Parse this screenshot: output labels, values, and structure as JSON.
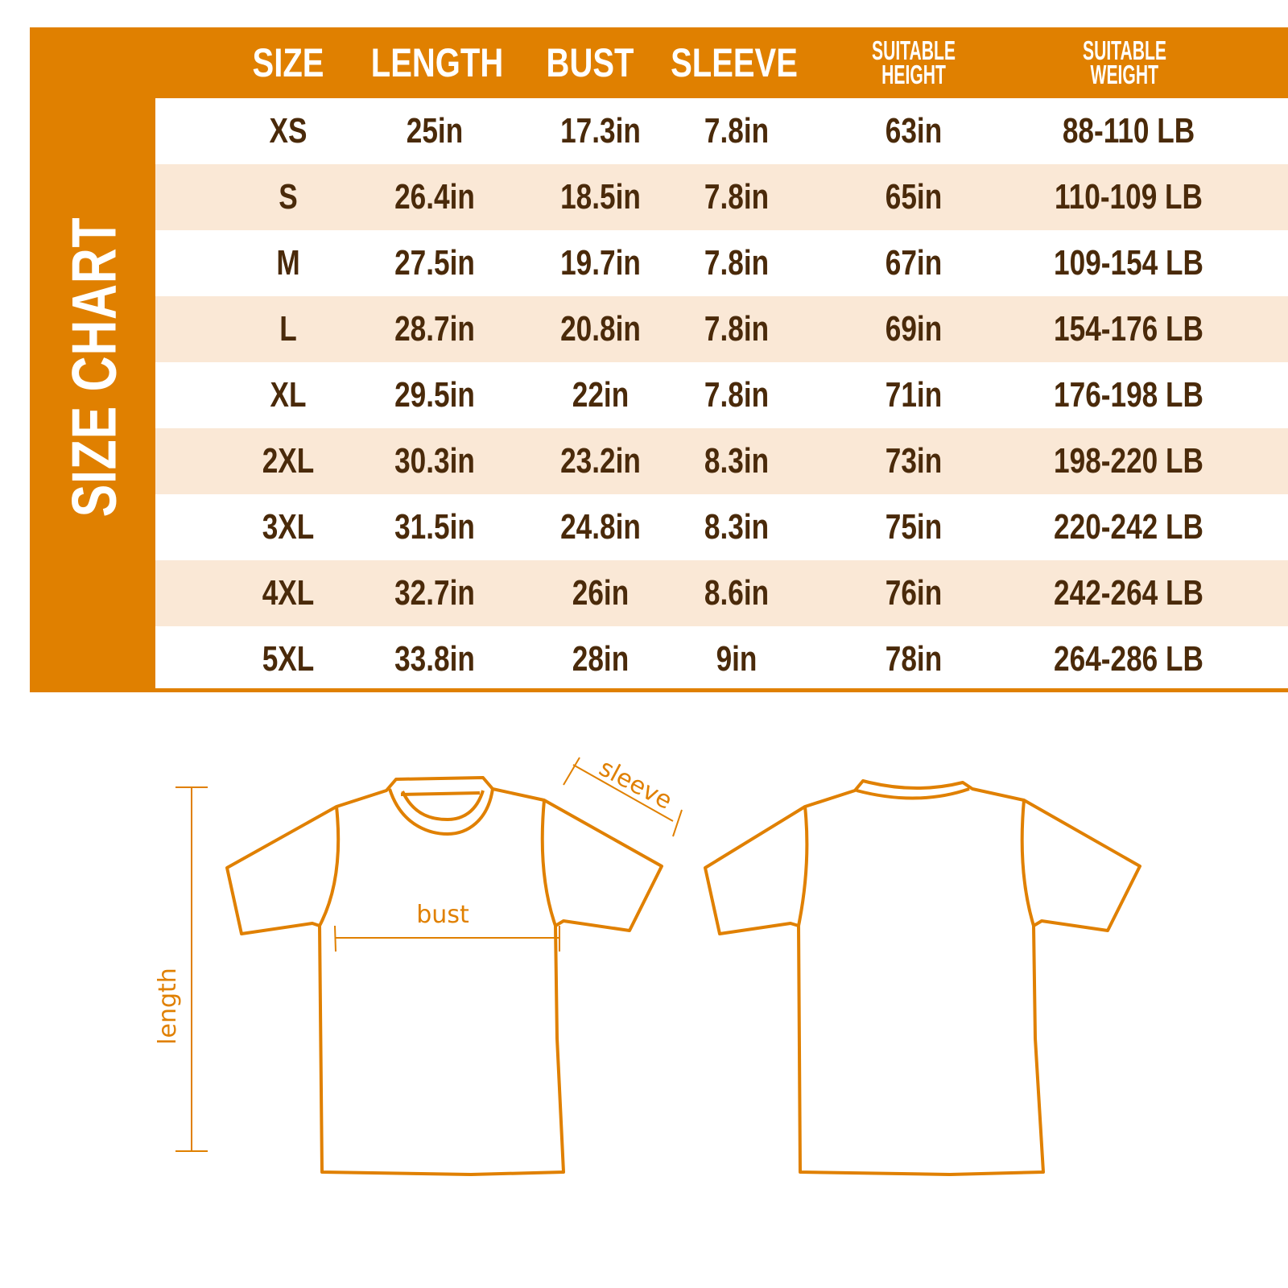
{
  "title": "SIZE CHART",
  "colors": {
    "accent": "#e08000",
    "alt_row": "#fae8d6",
    "text": "#4a2a0a"
  },
  "headers": [
    "SIZE",
    "LENGTH",
    "BUST",
    "SLEEVE",
    "SUITABLE HEIGHT",
    "SUITABLE WEIGHT"
  ],
  "header_lines": {
    "height": [
      "SUITABLE",
      "HEIGHT"
    ],
    "weight": [
      "SUITABLE",
      "WEIGHT"
    ]
  },
  "rows": [
    [
      "XS",
      "25in",
      "17.3in",
      "7.8in",
      "63in",
      "88-110 LB"
    ],
    [
      "S",
      "26.4in",
      "18.5in",
      "7.8in",
      "65in",
      "110-109 LB"
    ],
    [
      "M",
      "27.5in",
      "19.7in",
      "7.8in",
      "67in",
      "109-154 LB"
    ],
    [
      "L",
      "28.7in",
      "20.8in",
      "7.8in",
      "69in",
      "154-176 LB"
    ],
    [
      "XL",
      "29.5in",
      "22in",
      "7.8in",
      "71in",
      "176-198 LB"
    ],
    [
      "2XL",
      "30.3in",
      "23.2in",
      "8.3in",
      "73in",
      "198-220 LB"
    ],
    [
      "3XL",
      "31.5in",
      "24.8in",
      "8.3in",
      "75in",
      "220-242 LB"
    ],
    [
      "4XL",
      "32.7in",
      "26in",
      "8.6in",
      "76in",
      "242-264 LB"
    ],
    [
      "5XL",
      "33.8in",
      "28in",
      "9in",
      "78in",
      "264-286 LB"
    ]
  ],
  "diagram": {
    "length": "length",
    "bust": "bust",
    "sleeve": "sleeve"
  }
}
